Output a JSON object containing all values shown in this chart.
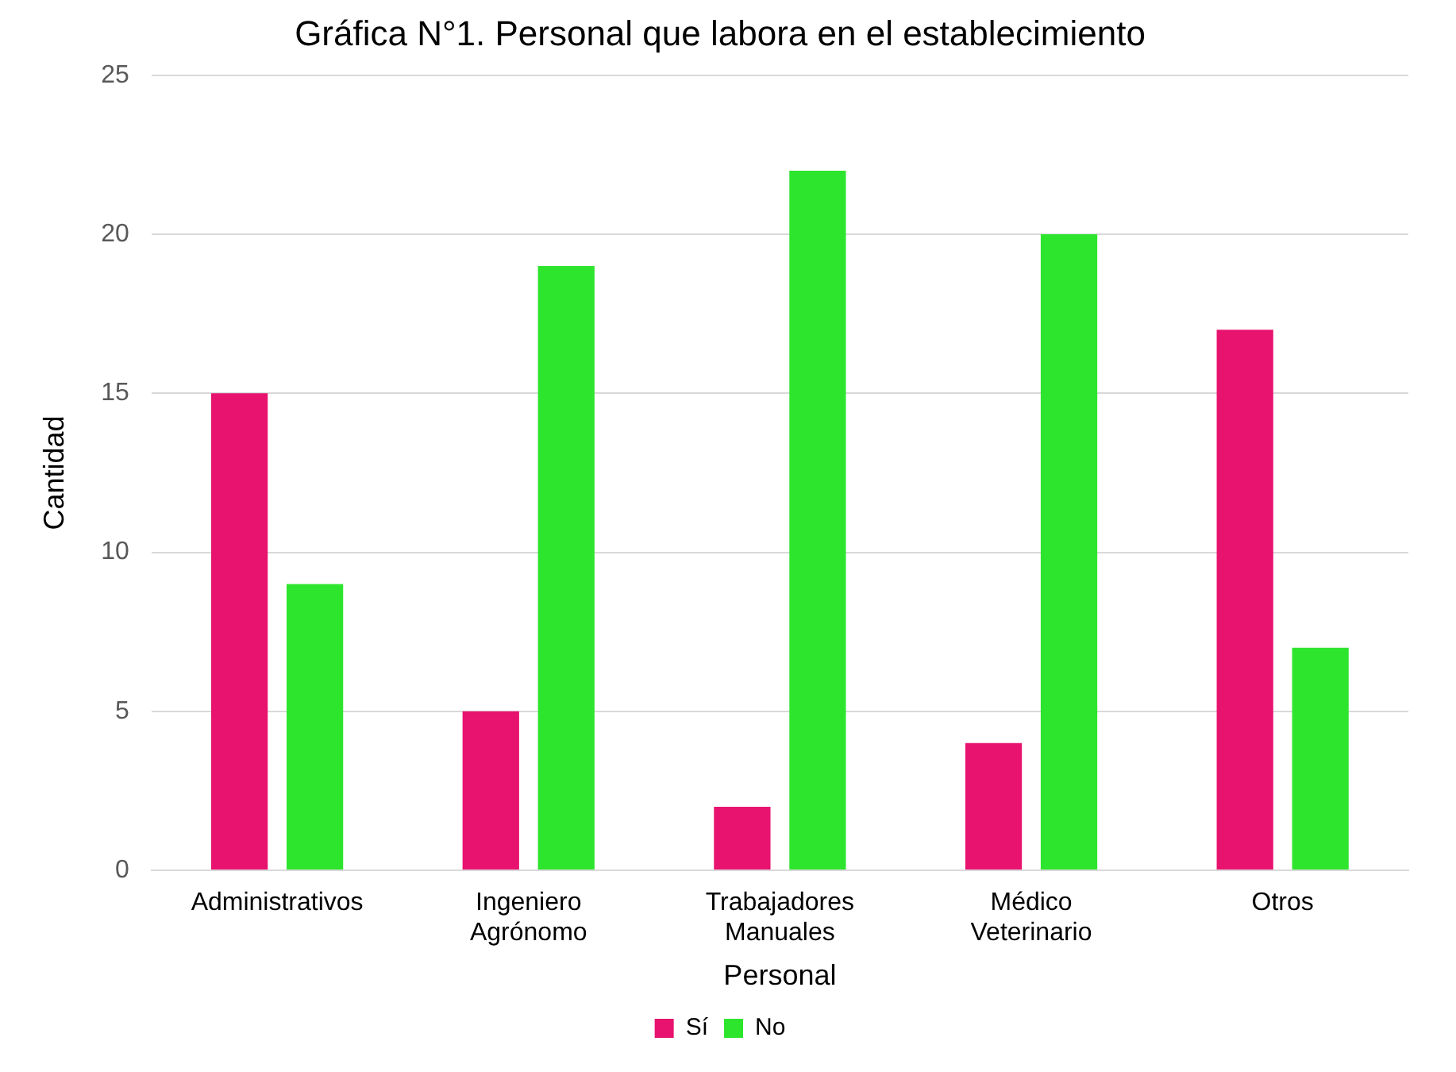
{
  "chart_data": {
    "type": "bar",
    "title": "Gráfica N°1. Personal que labora en el establecimiento",
    "xlabel": "Personal",
    "ylabel": "Cantidad",
    "categories": [
      "Administrativos",
      "Ingeniero Agrónomo",
      "Trabajadores Manuales",
      "Médico Veterinario",
      "Otros"
    ],
    "series": [
      {
        "name": "Sí",
        "color": "#e8136f",
        "values": [
          15,
          5,
          2,
          4,
          17
        ]
      },
      {
        "name": "No",
        "color": "#2ee52e",
        "values": [
          9,
          19,
          22,
          20,
          7
        ]
      }
    ],
    "ylim": [
      0,
      25
    ],
    "yticks": [
      0,
      5,
      10,
      15,
      20,
      25
    ],
    "grid": "y",
    "legend": "bottom"
  }
}
